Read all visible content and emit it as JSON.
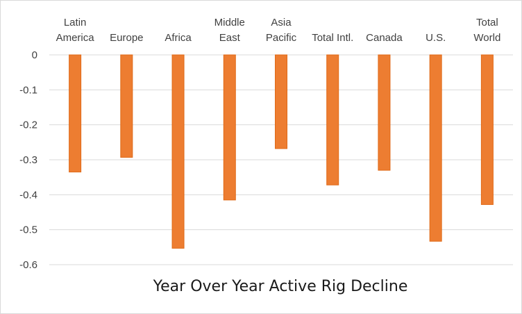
{
  "chart_data": {
    "type": "bar",
    "title": "Year Over Year Active Rig Decline",
    "xlabel": "",
    "ylabel": "",
    "categories": [
      [
        "Latin",
        "America"
      ],
      [
        "Europe"
      ],
      [
        "Africa"
      ],
      [
        "Middle",
        "East"
      ],
      [
        "Asia",
        "Pacific"
      ],
      [
        "Total Intl."
      ],
      [
        "Canada"
      ],
      [
        "U.S."
      ],
      [
        "Total",
        "World"
      ]
    ],
    "values": [
      -0.335,
      -0.293,
      -0.553,
      -0.415,
      -0.268,
      -0.372,
      -0.33,
      -0.533,
      -0.428
    ],
    "ylim": [
      -0.6,
      0
    ],
    "yticks": [
      "0",
      "-0.1",
      "-0.2",
      "-0.3",
      "-0.4",
      "-0.5",
      "-0.6"
    ],
    "grid": true,
    "legend": "none",
    "colors": {
      "bar": "#ED7D31",
      "bar_edge": "#E06A17",
      "grid": "#d9d9d9",
      "text": "#404040"
    }
  }
}
